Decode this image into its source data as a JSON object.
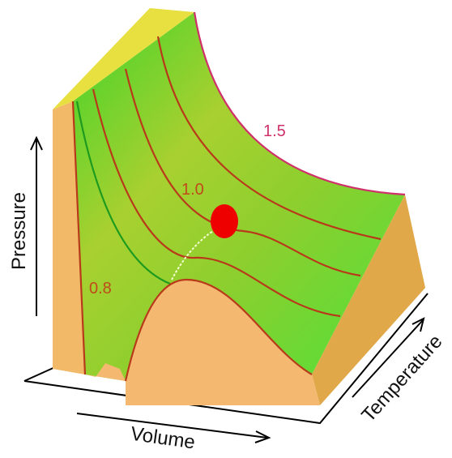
{
  "axes": {
    "pressure": "Pressure",
    "volume": "Volume",
    "temperature": "Temperature"
  },
  "isotherm_labels": [
    "1.5",
    "1.0",
    "0.8"
  ]
}
